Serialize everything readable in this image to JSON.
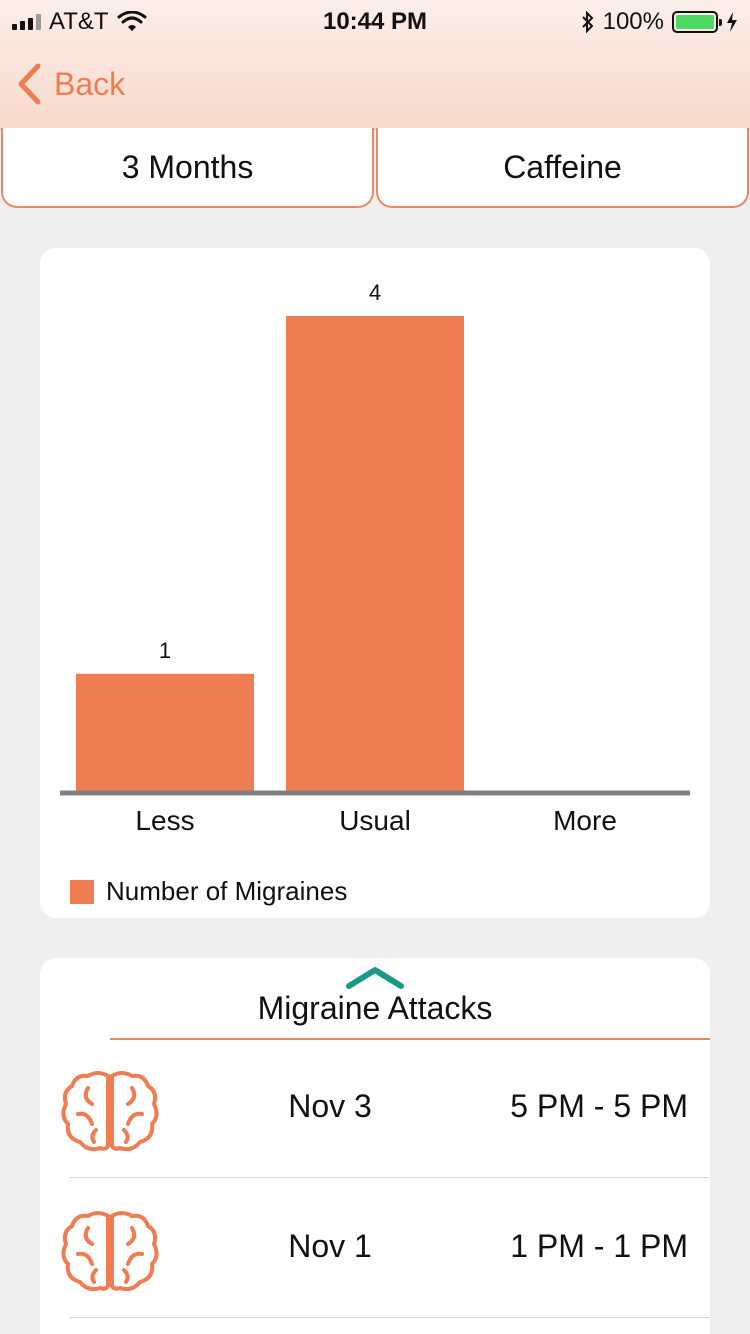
{
  "status_bar": {
    "carrier": "AT&T",
    "time": "10:44 PM",
    "battery": "100%"
  },
  "nav": {
    "back_label": "Back"
  },
  "segments": {
    "range": "3 Months",
    "factor": "Caffeine"
  },
  "colors": {
    "accent": "#ee7d52",
    "teal": "#1a9a86"
  },
  "chart_data": {
    "type": "bar",
    "categories": [
      "Less",
      "Usual",
      "More"
    ],
    "series": [
      {
        "name": "Number of Migraines",
        "values": [
          1,
          4,
          0
        ]
      }
    ],
    "value_labels": [
      "1",
      "4",
      ""
    ],
    "ylim": [
      0,
      4
    ],
    "grid": false,
    "legend": "bottom-left"
  },
  "attacks": {
    "title": "Migraine Attacks",
    "items": [
      {
        "icon": "brain-icon",
        "date": "Nov 3",
        "time": "5 PM - 5 PM"
      },
      {
        "icon": "brain-icon",
        "date": "Nov 1",
        "time": "1 PM - 1 PM"
      }
    ]
  }
}
